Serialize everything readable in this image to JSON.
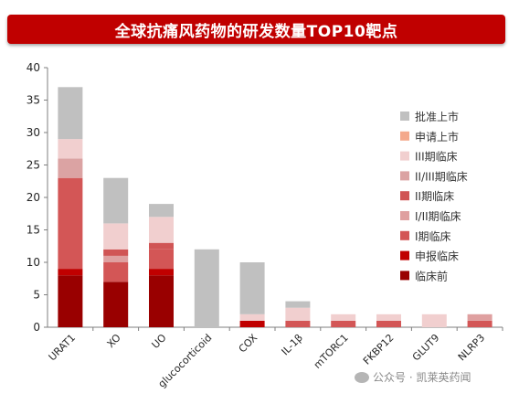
{
  "title": "全球抗痛风药物的研发数量TOP10靶点",
  "watermark": "公众号 · 凯莱英药闻",
  "chart_data": {
    "type": "bar",
    "stacked": true,
    "categories": [
      "URAT1",
      "XO",
      "UO",
      "glucocorticoid",
      "COX",
      "IL-1β",
      "mTORC1",
      "FKBP12",
      "GLUT9",
      "NLRP3"
    ],
    "ylim": [
      0,
      40
    ],
    "yticks": [
      0,
      5,
      10,
      15,
      20,
      25,
      30,
      35,
      40
    ],
    "grid": false,
    "legend_position": "right",
    "series": [
      {
        "name": "临床前",
        "color": "#990000",
        "values": [
          8,
          7,
          8,
          0,
          0,
          0,
          0,
          0,
          0,
          0
        ]
      },
      {
        "name": "申报临床",
        "color": "#c00000",
        "values": [
          1,
          0,
          1,
          0,
          1,
          0,
          0,
          0,
          0,
          0
        ]
      },
      {
        "name": "I期临床",
        "color": "#d35656",
        "values": [
          14,
          3,
          3,
          0,
          0,
          1,
          1,
          1,
          0,
          1
        ]
      },
      {
        "name": "I/II期临床",
        "color": "#dfa0a0",
        "values": [
          0,
          1,
          0,
          0,
          0,
          0,
          0,
          0,
          0,
          1
        ]
      },
      {
        "name": "II期临床",
        "color": "#d05555",
        "values": [
          0,
          1,
          1,
          0,
          0,
          0,
          0,
          0,
          0,
          0
        ]
      },
      {
        "name": "II/III期临床",
        "color": "#dba3a3",
        "values": [
          3,
          0,
          0,
          0,
          0,
          0,
          0,
          0,
          0,
          0
        ]
      },
      {
        "name": "III期临床",
        "color": "#f1cfcf",
        "values": [
          3,
          4,
          4,
          0,
          1,
          2,
          1,
          1,
          2,
          0
        ]
      },
      {
        "name": "申请上市",
        "color": "#f4a98c",
        "values": [
          0,
          0,
          0,
          0,
          0,
          0,
          0,
          0,
          0,
          0
        ]
      },
      {
        "name": "批准上市",
        "color": "#c0c0c0",
        "values": [
          8,
          7,
          2,
          12,
          8,
          1,
          0,
          0,
          0,
          0
        ]
      }
    ]
  }
}
